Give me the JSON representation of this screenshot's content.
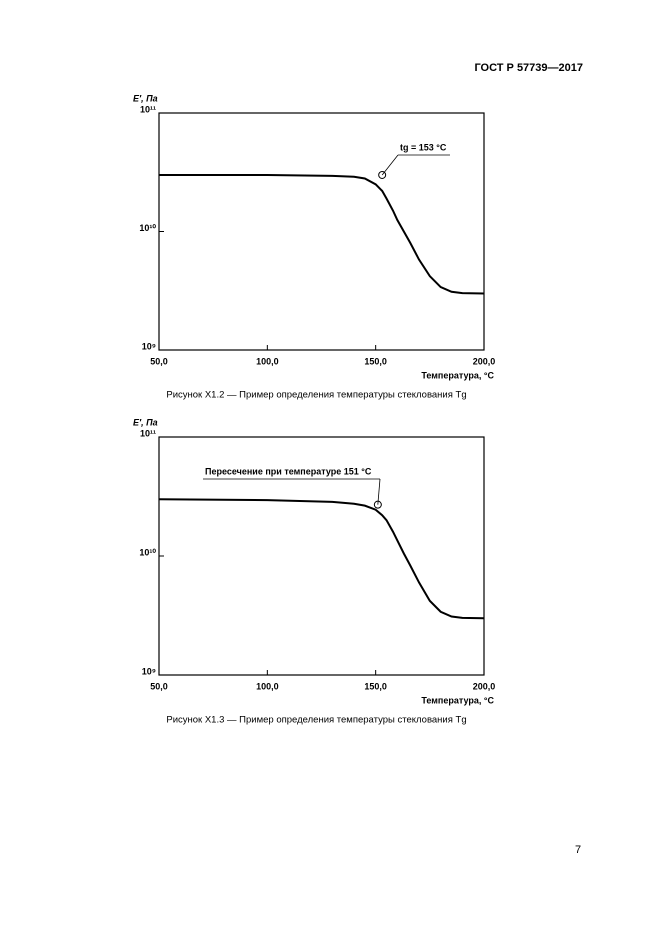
{
  "header": "ГОСТ Р 57739—2017",
  "page_number": "7",
  "chart_data": [
    {
      "type": "line",
      "y_label": "E′, Па",
      "x_label": "Температура, °С",
      "caption": "Рисунок X1.2 — Пример определения температуры стеклования Tg",
      "log_y": true,
      "color": "#000000",
      "xlim": [
        50,
        200
      ],
      "xticks": [
        {
          "value": 50,
          "label": "50,0"
        },
        {
          "value": 100,
          "label": "100,0"
        },
        {
          "value": 150,
          "label": "150,0"
        },
        {
          "value": 200,
          "label": "200,0"
        }
      ],
      "ylim": [
        1000000000,
        100000000000
      ],
      "yticks": [
        {
          "value": 1000000000,
          "label": "10⁹"
        },
        {
          "value": 10000000000,
          "label": "10¹⁰"
        },
        {
          "value": 100000000000,
          "label": "10¹¹"
        }
      ],
      "x": [
        50,
        100,
        130,
        140,
        145,
        150,
        153,
        155,
        158,
        160,
        163,
        166,
        170,
        175,
        180,
        185,
        190,
        200
      ],
      "series": [
        {
          "values": [
            30000000000,
            30000000000,
            29500000000,
            29000000000,
            28000000000,
            25000000000,
            22000000000,
            19000000000,
            15000000000,
            12500000000,
            10000000000,
            8000000000,
            5800000000,
            4200000000,
            3400000000,
            3100000000,
            3020000000,
            3000000000
          ]
        }
      ],
      "annotation": {
        "text": "tg = 153 °C",
        "x": 153,
        "y": 30000000000
      }
    },
    {
      "type": "line",
      "y_label": "E′, Па",
      "x_label": "Температура, °С",
      "caption": "Рисунок X1.3 — Пример определения температуры стеклования Tg",
      "log_y": true,
      "color": "#000000",
      "xlim": [
        50,
        200
      ],
      "xticks": [
        {
          "value": 50,
          "label": "50,0"
        },
        {
          "value": 100,
          "label": "100,0"
        },
        {
          "value": 150,
          "label": "150,0"
        },
        {
          "value": 200,
          "label": "200,0"
        }
      ],
      "ylim": [
        1000000000,
        100000000000
      ],
      "yticks": [
        {
          "value": 1000000000,
          "label": "10⁹"
        },
        {
          "value": 10000000000,
          "label": "10¹⁰"
        },
        {
          "value": 100000000000,
          "label": "10¹¹"
        }
      ],
      "x": [
        50,
        100,
        130,
        140,
        145,
        150,
        153,
        155,
        158,
        160,
        163,
        166,
        170,
        175,
        180,
        185,
        190,
        200
      ],
      "series": [
        {
          "values": [
            30000000000,
            29500000000,
            28500000000,
            27500000000,
            26500000000,
            24500000000,
            22000000000,
            20000000000,
            16000000000,
            13500000000,
            10500000000,
            8300000000,
            6000000000,
            4200000000,
            3400000000,
            3100000000,
            3020000000,
            3000000000
          ]
        }
      ],
      "annotation": {
        "text": "Пересечение при температуре 151 °C",
        "x": 151,
        "y": 27000000000
      }
    }
  ]
}
